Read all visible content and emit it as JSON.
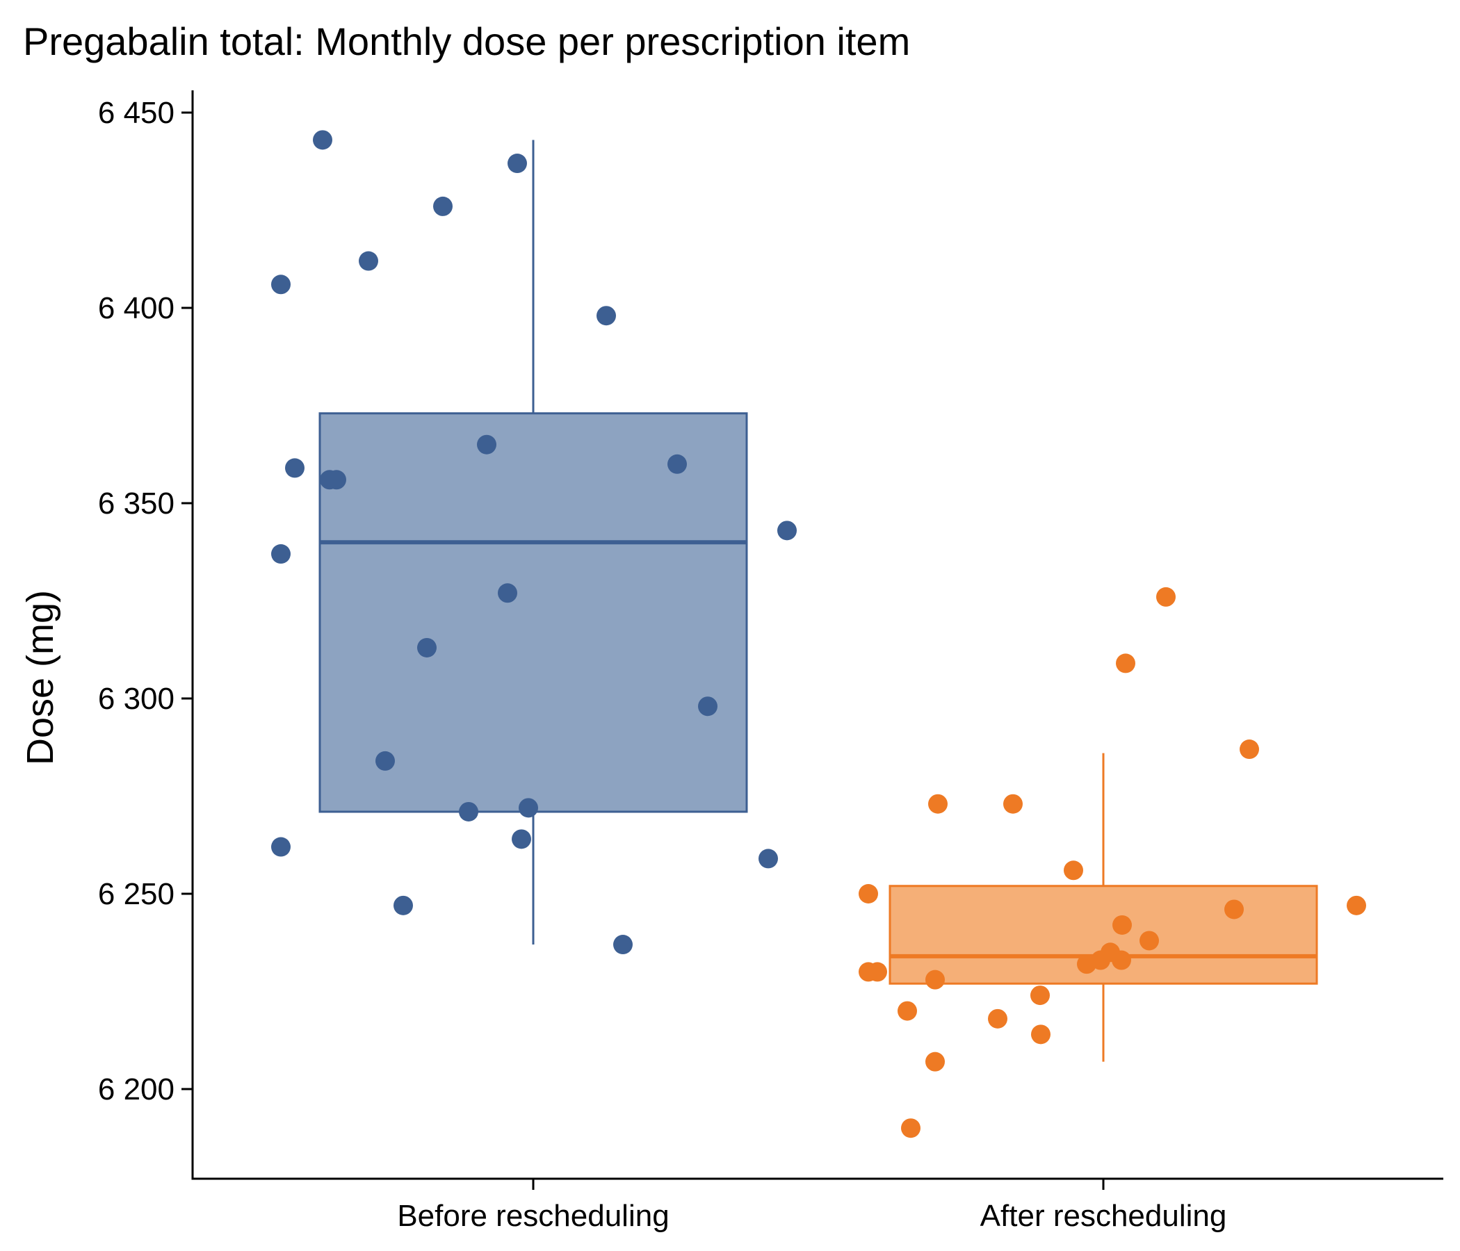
{
  "chart_data": {
    "type": "box",
    "title": "Pregabalin total: Monthly dose per prescription item",
    "ylabel": "Dose (mg)",
    "xlabel": "",
    "ylim": [
      6184,
      6456
    ],
    "yticks": [
      6200,
      6250,
      6300,
      6350,
      6400,
      6450
    ],
    "ytick_labels": [
      "6 200",
      "6 250",
      "6 300",
      "6 350",
      "6 400",
      "6 450"
    ],
    "grid": false,
    "legend": "none",
    "categories": [
      "Before rescheduling",
      "After rescheduling"
    ],
    "series": [
      {
        "category": "Before rescheduling",
        "color": "#3D5F92",
        "fill": "#8DA3C1",
        "box": {
          "whisker_low": 6237,
          "q1": 6271,
          "median": 6340,
          "q3": 6373,
          "whisker_high": 6443
        },
        "points": [
          6443,
          6437,
          6426,
          6412,
          6406,
          6398,
          6365,
          6360,
          6359,
          6356,
          6356,
          6343,
          6337,
          6327,
          6313,
          6298,
          6284,
          6272,
          6271,
          6264,
          6262,
          6259,
          6247,
          6237
        ]
      },
      {
        "category": "After rescheduling",
        "color": "#EE7A24",
        "fill": "#F5AF77",
        "box": {
          "whisker_low": 6207,
          "q1": 6227,
          "median": 6234,
          "q3": 6252,
          "whisker_high": 6286
        },
        "points": [
          6326,
          6309,
          6287,
          6273,
          6273,
          6256,
          6250,
          6247,
          6246,
          6242,
          6238,
          6235,
          6233,
          6233,
          6232,
          6230,
          6230,
          6228,
          6224,
          6220,
          6218,
          6214,
          6207,
          6190
        ]
      }
    ]
  }
}
